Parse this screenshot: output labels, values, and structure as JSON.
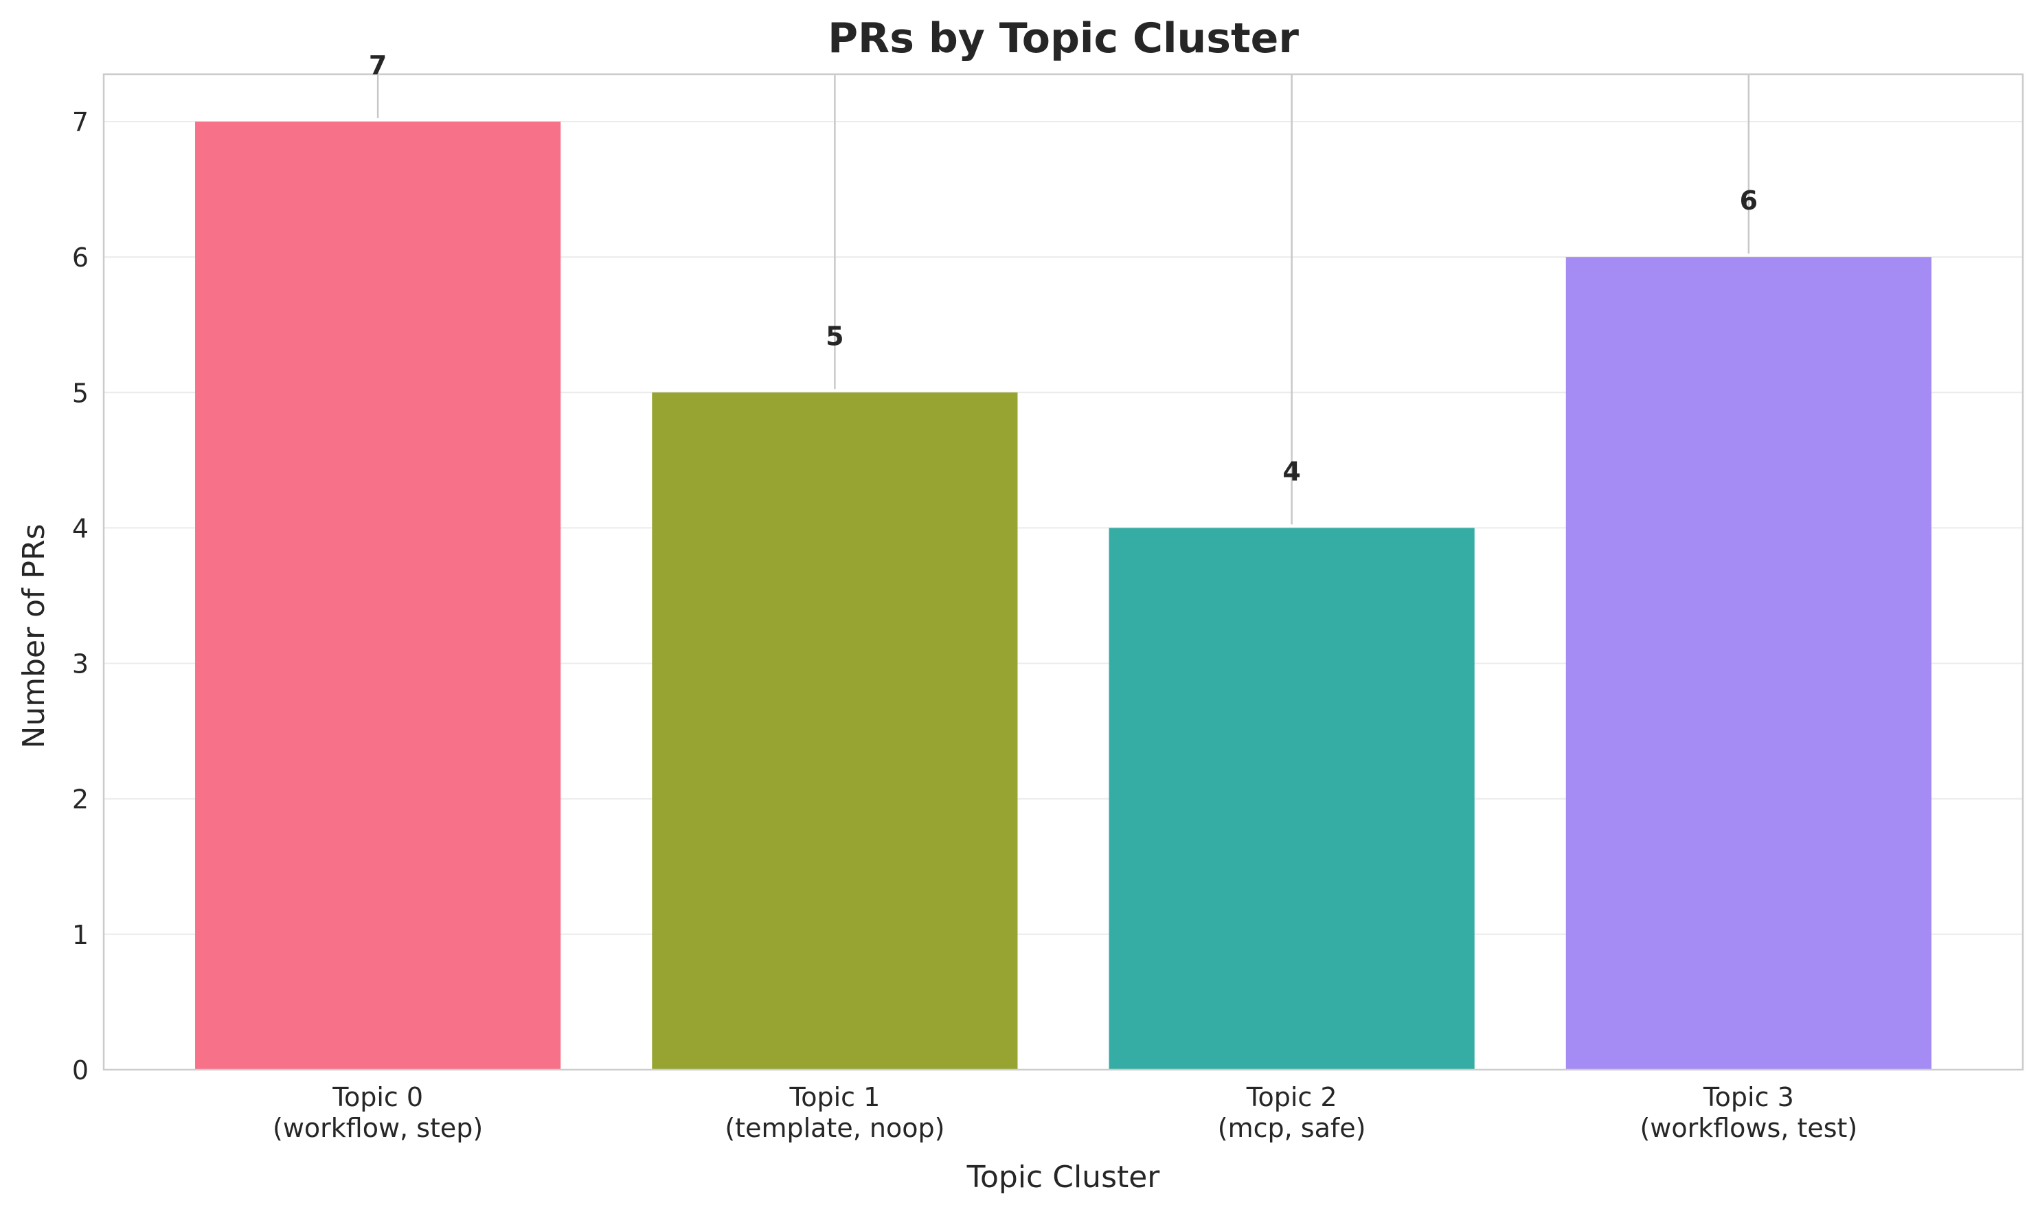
{
  "chart_data": {
    "type": "bar",
    "title": "PRs by Topic Cluster",
    "xlabel": "Topic Cluster",
    "ylabel": "Number of PRs",
    "categories": [
      [
        "Topic 0",
        "(workflow, step)"
      ],
      [
        "Topic 1",
        "(template, noop)"
      ],
      [
        "Topic 2",
        "(mcp, safe)"
      ],
      [
        "Topic 3",
        "(workflows, test)"
      ]
    ],
    "values": [
      7,
      5,
      4,
      6
    ],
    "value_labels": [
      "7",
      "5",
      "4",
      "6"
    ],
    "colors": [
      "#f77189",
      "#97a431",
      "#36ada4",
      "#a48cf4"
    ],
    "ylim": [
      0,
      7.35
    ],
    "yticks": [
      0,
      1,
      2,
      3,
      4,
      5,
      6,
      7
    ],
    "grid": "y",
    "legend": "none"
  }
}
